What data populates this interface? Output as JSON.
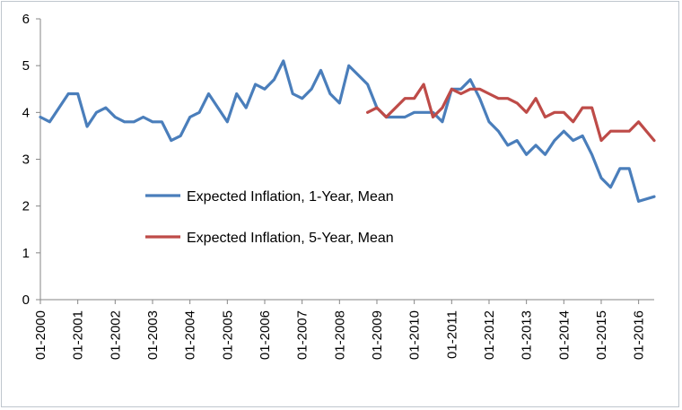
{
  "chart_data": {
    "type": "line",
    "title": "",
    "xlabel": "",
    "ylabel": "",
    "ylim": [
      0,
      6
    ],
    "yticks": [
      "0",
      "1",
      "2",
      "3",
      "4",
      "5",
      "6"
    ],
    "xlim": [
      "01-2000",
      "06-2016"
    ],
    "xticks": [
      "01-2000",
      "01-2001",
      "01-2002",
      "01-2003",
      "01-2004",
      "01-2005",
      "01-2006",
      "01-2007",
      "01-2008",
      "01-2009",
      "01-2010",
      "01-2011",
      "01-2012",
      "01-2013",
      "01-2014",
      "01-2015",
      "01-2016"
    ],
    "grid": false,
    "legend_position": "center-left",
    "series": [
      {
        "name": "Expected Inflation, 1-Year, Mean",
        "color": "#4a7ebb",
        "points": [
          [
            "01-2000",
            3.9
          ],
          [
            "04-2000",
            3.8
          ],
          [
            "07-2000",
            4.1
          ],
          [
            "10-2000",
            4.4
          ],
          [
            "01-2001",
            4.4
          ],
          [
            "04-2001",
            3.7
          ],
          [
            "07-2001",
            4.0
          ],
          [
            "10-2001",
            4.1
          ],
          [
            "01-2002",
            3.9
          ],
          [
            "04-2002",
            3.8
          ],
          [
            "07-2002",
            3.8
          ],
          [
            "10-2002",
            3.9
          ],
          [
            "01-2003",
            3.8
          ],
          [
            "04-2003",
            3.8
          ],
          [
            "07-2003",
            3.4
          ],
          [
            "10-2003",
            3.5
          ],
          [
            "01-2004",
            3.9
          ],
          [
            "04-2004",
            4.0
          ],
          [
            "07-2004",
            4.4
          ],
          [
            "10-2004",
            4.1
          ],
          [
            "01-2005",
            3.8
          ],
          [
            "04-2005",
            4.4
          ],
          [
            "07-2005",
            4.1
          ],
          [
            "10-2005",
            4.6
          ],
          [
            "01-2006",
            4.5
          ],
          [
            "04-2006",
            4.7
          ],
          [
            "07-2006",
            5.1
          ],
          [
            "10-2006",
            4.4
          ],
          [
            "01-2007",
            4.3
          ],
          [
            "04-2007",
            4.5
          ],
          [
            "07-2007",
            4.9
          ],
          [
            "10-2007",
            4.4
          ],
          [
            "01-2008",
            4.2
          ],
          [
            "04-2008",
            5.0
          ],
          [
            "07-2008",
            4.8
          ],
          [
            "10-2008",
            4.6
          ],
          [
            "01-2009",
            4.1
          ],
          [
            "04-2009",
            3.9
          ],
          [
            "07-2009",
            3.9
          ],
          [
            "10-2009",
            3.9
          ],
          [
            "01-2010",
            4.0
          ],
          [
            "04-2010",
            4.0
          ],
          [
            "07-2010",
            4.0
          ],
          [
            "10-2010",
            3.8
          ],
          [
            "01-2011",
            4.5
          ],
          [
            "04-2011",
            4.5
          ],
          [
            "07-2011",
            4.7
          ],
          [
            "10-2011",
            4.3
          ],
          [
            "01-2012",
            3.8
          ],
          [
            "04-2012",
            3.6
          ],
          [
            "07-2012",
            3.3
          ],
          [
            "10-2012",
            3.4
          ],
          [
            "01-2013",
            3.1
          ],
          [
            "04-2013",
            3.3
          ],
          [
            "07-2013",
            3.1
          ],
          [
            "10-2013",
            3.4
          ],
          [
            "01-2014",
            3.6
          ],
          [
            "04-2014",
            3.4
          ],
          [
            "07-2014",
            3.5
          ],
          [
            "10-2014",
            3.1
          ],
          [
            "01-2015",
            2.6
          ],
          [
            "04-2015",
            2.4
          ],
          [
            "07-2015",
            2.8
          ],
          [
            "10-2015",
            2.8
          ],
          [
            "01-2016",
            2.1
          ],
          [
            "06-2016",
            2.2
          ]
        ]
      },
      {
        "name": "Expected Inflation, 5-Year, Mean",
        "color": "#be4b48",
        "points": [
          [
            "10-2008",
            4.0
          ],
          [
            "01-2009",
            4.1
          ],
          [
            "04-2009",
            3.9
          ],
          [
            "07-2009",
            4.1
          ],
          [
            "10-2009",
            4.3
          ],
          [
            "01-2010",
            4.3
          ],
          [
            "04-2010",
            4.6
          ],
          [
            "07-2010",
            3.9
          ],
          [
            "10-2010",
            4.1
          ],
          [
            "01-2011",
            4.5
          ],
          [
            "04-2011",
            4.4
          ],
          [
            "07-2011",
            4.5
          ],
          [
            "10-2011",
            4.5
          ],
          [
            "01-2012",
            4.4
          ],
          [
            "04-2012",
            4.3
          ],
          [
            "07-2012",
            4.3
          ],
          [
            "10-2012",
            4.2
          ],
          [
            "01-2013",
            4.0
          ],
          [
            "04-2013",
            4.3
          ],
          [
            "07-2013",
            3.9
          ],
          [
            "10-2013",
            4.0
          ],
          [
            "01-2014",
            4.0
          ],
          [
            "04-2014",
            3.8
          ],
          [
            "07-2014",
            4.1
          ],
          [
            "10-2014",
            4.1
          ],
          [
            "01-2015",
            3.4
          ],
          [
            "04-2015",
            3.6
          ],
          [
            "07-2015",
            3.6
          ],
          [
            "10-2015",
            3.6
          ],
          [
            "01-2016",
            3.8
          ],
          [
            "06-2016",
            3.4
          ]
        ]
      }
    ]
  }
}
